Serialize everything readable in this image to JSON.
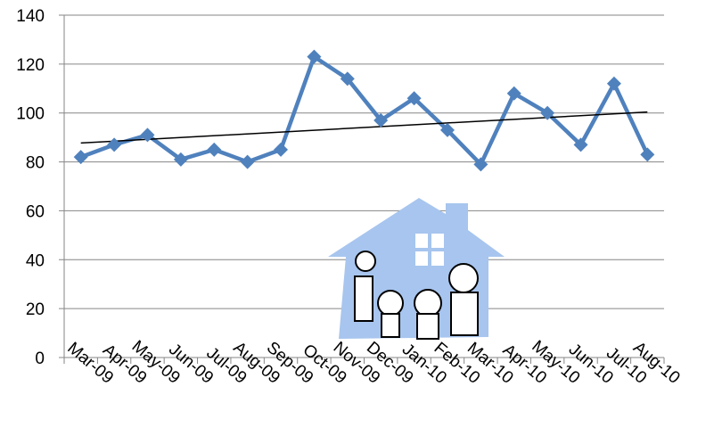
{
  "chart_data": {
    "type": "line",
    "categories": [
      "Mar-09",
      "Apr-09",
      "May-09",
      "Jun-09",
      "Jul-09",
      "Aug-09",
      "Sep-09",
      "Oct-09",
      "Nov-09",
      "Dec-09",
      "Jan-10",
      "Feb-10",
      "Mar-10",
      "Apr-10",
      "May-10",
      "Jun-10",
      "Jul-10",
      "Aug-10"
    ],
    "series": [
      {
        "color": "#4f81bd",
        "values": [
          82,
          87,
          91,
          81,
          85,
          80,
          85,
          123,
          114,
          97,
          106,
          93,
          79,
          108,
          100,
          87,
          112,
          83
        ]
      }
    ],
    "trendline": true,
    "ylim": [
      0,
      140
    ],
    "yticks": [
      0,
      20,
      40,
      60,
      80,
      100,
      120,
      140
    ],
    "grid": true
  }
}
